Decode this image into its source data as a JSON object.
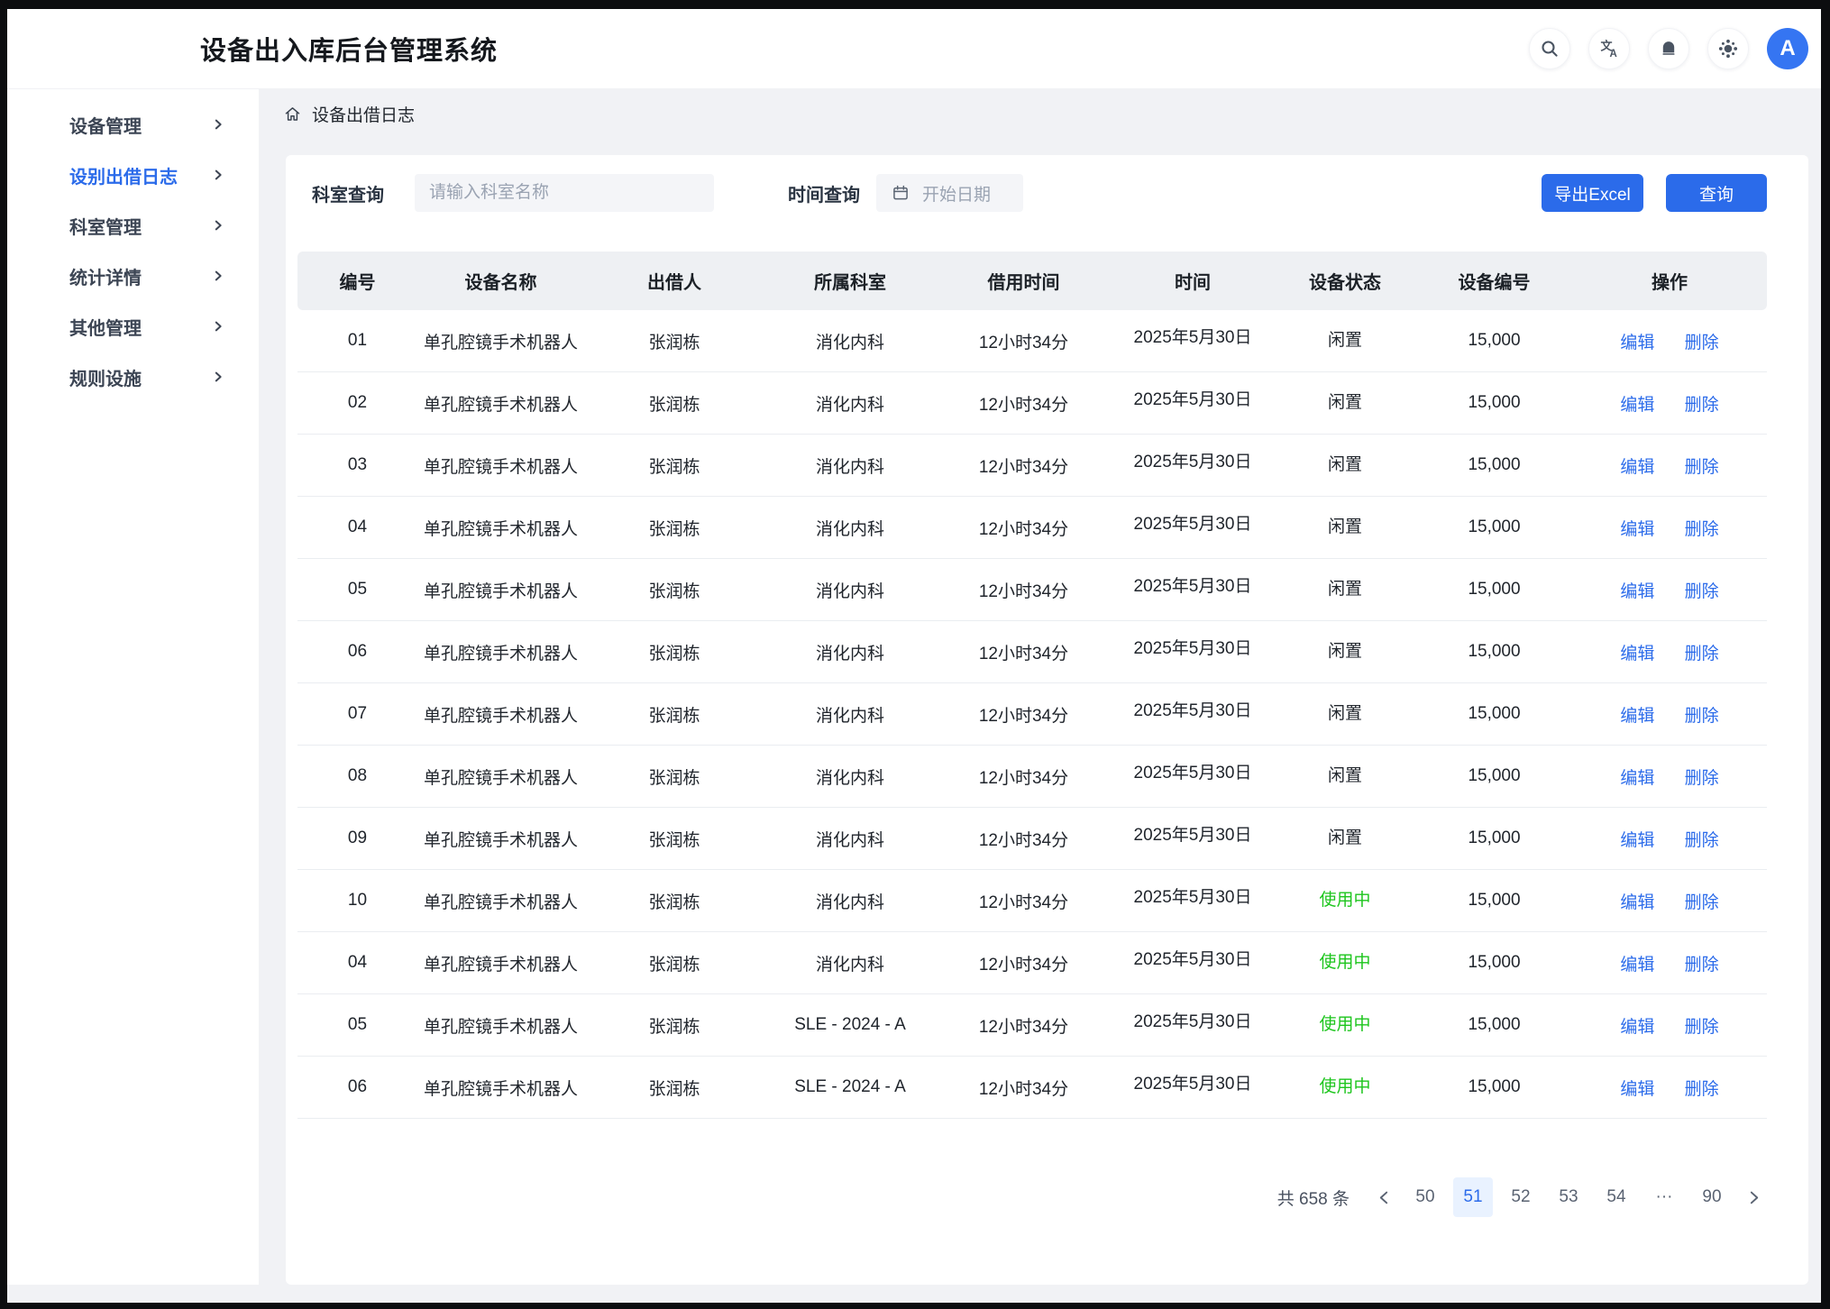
{
  "header": {
    "title": "设备出入库后台管理系统",
    "avatar_letter": "A",
    "icons": [
      "search-icon",
      "translate-icon",
      "notification-bell-icon",
      "settings-icon"
    ]
  },
  "sidebar": {
    "items": [
      {
        "label": "设备管理",
        "active": false
      },
      {
        "label": "设别出借日志",
        "active": true
      },
      {
        "label": "科室管理",
        "active": false
      },
      {
        "label": "统计详情",
        "active": false
      },
      {
        "label": "其他管理",
        "active": false
      },
      {
        "label": "规则设施",
        "active": false
      }
    ]
  },
  "breadcrumb": {
    "label": "设备出借日志"
  },
  "filters": {
    "dept_label": "科室查询",
    "dept_placeholder": "请输入科室名称",
    "time_label": "时间查询",
    "date_placeholder": "开始日期"
  },
  "actions": {
    "export_excel": "导出Excel",
    "query": "查询"
  },
  "table": {
    "columns": [
      "编号",
      "设备名称",
      "出借人",
      "所属科室",
      "借用时间",
      "时间",
      "设备状态",
      "设备编号",
      "操作"
    ],
    "row_actions": {
      "edit": "编辑",
      "delete": "删除"
    },
    "rows": [
      {
        "id": "01",
        "device": "单孔腔镜手术机器人",
        "lender": "张润栋",
        "department": "消化内科",
        "duration": "12小时34分",
        "date": "2025年5月30日",
        "status": "闲置",
        "status_type": "idle",
        "code": "15,000"
      },
      {
        "id": "02",
        "device": "单孔腔镜手术机器人",
        "lender": "张润栋",
        "department": "消化内科",
        "duration": "12小时34分",
        "date": "2025年5月30日",
        "status": "闲置",
        "status_type": "idle",
        "code": "15,000"
      },
      {
        "id": "03",
        "device": "单孔腔镜手术机器人",
        "lender": "张润栋",
        "department": "消化内科",
        "duration": "12小时34分",
        "date": "2025年5月30日",
        "status": "闲置",
        "status_type": "idle",
        "code": "15,000"
      },
      {
        "id": "04",
        "device": "单孔腔镜手术机器人",
        "lender": "张润栋",
        "department": "消化内科",
        "duration": "12小时34分",
        "date": "2025年5月30日",
        "status": "闲置",
        "status_type": "idle",
        "code": "15,000"
      },
      {
        "id": "05",
        "device": "单孔腔镜手术机器人",
        "lender": "张润栋",
        "department": "消化内科",
        "duration": "12小时34分",
        "date": "2025年5月30日",
        "status": "闲置",
        "status_type": "idle",
        "code": "15,000"
      },
      {
        "id": "06",
        "device": "单孔腔镜手术机器人",
        "lender": "张润栋",
        "department": "消化内科",
        "duration": "12小时34分",
        "date": "2025年5月30日",
        "status": "闲置",
        "status_type": "idle",
        "code": "15,000"
      },
      {
        "id": "07",
        "device": "单孔腔镜手术机器人",
        "lender": "张润栋",
        "department": "消化内科",
        "duration": "12小时34分",
        "date": "2025年5月30日",
        "status": "闲置",
        "status_type": "idle",
        "code": "15,000"
      },
      {
        "id": "08",
        "device": "单孔腔镜手术机器人",
        "lender": "张润栋",
        "department": "消化内科",
        "duration": "12小时34分",
        "date": "2025年5月30日",
        "status": "闲置",
        "status_type": "idle",
        "code": "15,000"
      },
      {
        "id": "09",
        "device": "单孔腔镜手术机器人",
        "lender": "张润栋",
        "department": "消化内科",
        "duration": "12小时34分",
        "date": "2025年5月30日",
        "status": "闲置",
        "status_type": "idle",
        "code": "15,000"
      },
      {
        "id": "10",
        "device": "单孔腔镜手术机器人",
        "lender": "张润栋",
        "department": "消化内科",
        "duration": "12小时34分",
        "date": "2025年5月30日",
        "status": "使用中",
        "status_type": "in_use",
        "code": "15,000"
      },
      {
        "id": "04",
        "device": "单孔腔镜手术机器人",
        "lender": "张润栋",
        "department": "消化内科",
        "duration": "12小时34分",
        "date": "2025年5月30日",
        "status": "使用中",
        "status_type": "in_use",
        "code": "15,000"
      },
      {
        "id": "05",
        "device": "单孔腔镜手术机器人",
        "lender": "张润栋",
        "department": "SLE - 2024 - A",
        "duration": "12小时34分",
        "date": "2025年5月30日",
        "status": "使用中",
        "status_type": "in_use",
        "code": "15,000"
      },
      {
        "id": "06",
        "device": "单孔腔镜手术机器人",
        "lender": "张润栋",
        "department": "SLE - 2024 - A",
        "duration": "12小时34分",
        "date": "2025年5月30日",
        "status": "使用中",
        "status_type": "in_use",
        "code": "15,000"
      }
    ]
  },
  "pagination": {
    "total": "共 658 条",
    "pages": [
      "50",
      "51",
      "52",
      "53",
      "54",
      "···",
      "90"
    ],
    "active_page": "51"
  },
  "colors": {
    "primary": "#2b6bea",
    "status_in_use": "#1dc51d",
    "status_idle": "#21262d",
    "active_page_bg": "#e9f2ff",
    "page_background": "#f1f2f5"
  }
}
